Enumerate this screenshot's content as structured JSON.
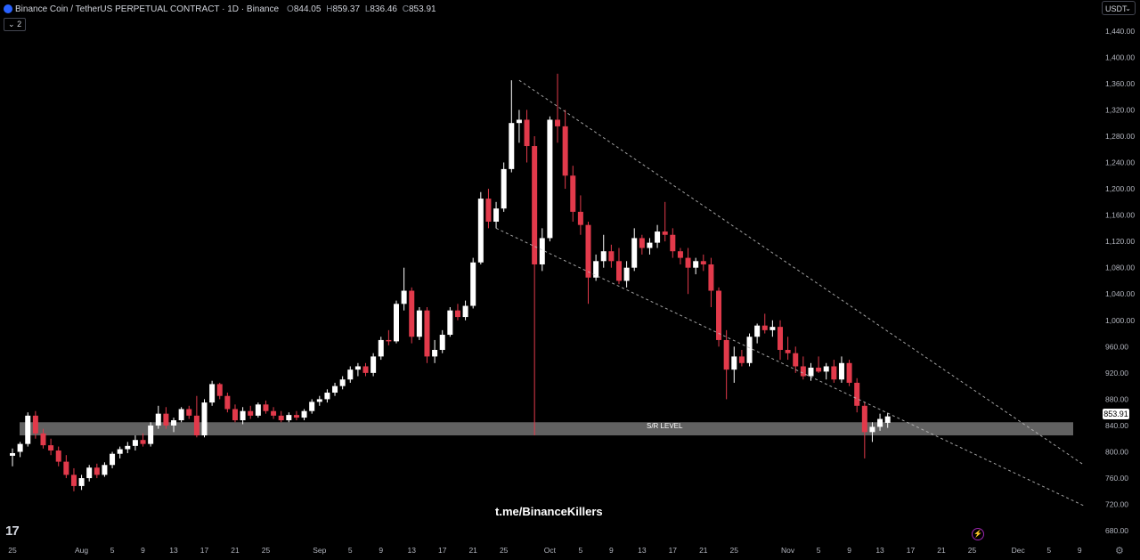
{
  "header": {
    "symbol": "Binance Coin / TetherUS PERPETUAL CONTRACT · 1D · Binance",
    "o_label": "O",
    "o": "844.05",
    "h_label": "H",
    "h": "859.37",
    "l_label": "L",
    "l": "836.46",
    "c_label": "C",
    "c": "853.91"
  },
  "indicator_toggle": "2",
  "currency_select": "USDT",
  "last_price_tag": "853.91",
  "watermark": "t.me/BinanceKillers",
  "sr_label": "S/R LEVEL",
  "tv_logo": "17",
  "colors": {
    "up": "#ffffff",
    "down": "#e23a4b",
    "background": "#000000",
    "sr_zone": "#6b6b6b",
    "trendline": "#bfbfbf"
  },
  "chart_data": {
    "type": "candlestick",
    "title": "Binance Coin / TetherUS PERPETUAL CONTRACT · 1D · Binance",
    "ylim": [
      680,
      1460
    ],
    "yticks": [
      680,
      720,
      760,
      800,
      840,
      880,
      920,
      960,
      1000,
      1040,
      1080,
      1120,
      1160,
      1200,
      1240,
      1280,
      1320,
      1360,
      1400,
      1440
    ],
    "ytick_labels": [
      "680.00",
      "720.00",
      "760.00",
      "800.00",
      "840.00",
      "880.00",
      "920.00",
      "960.00",
      "1,000.00",
      "1,040.00",
      "1,080.00",
      "1,120.00",
      "1,160.00",
      "1,200.00",
      "1,240.00",
      "1,280.00",
      "1,320.00",
      "1,360.00",
      "1,400.00",
      "1,440.00"
    ],
    "xticks": [
      {
        "i": 0,
        "label": "25"
      },
      {
        "i": 9,
        "label": "Aug"
      },
      {
        "i": 13,
        "label": "5"
      },
      {
        "i": 17,
        "label": "9"
      },
      {
        "i": 21,
        "label": "13"
      },
      {
        "i": 25,
        "label": "17"
      },
      {
        "i": 29,
        "label": "21"
      },
      {
        "i": 33,
        "label": "25"
      },
      {
        "i": 40,
        "label": "Sep"
      },
      {
        "i": 44,
        "label": "5"
      },
      {
        "i": 48,
        "label": "9"
      },
      {
        "i": 52,
        "label": "13"
      },
      {
        "i": 56,
        "label": "17"
      },
      {
        "i": 60,
        "label": "21"
      },
      {
        "i": 64,
        "label": "25"
      },
      {
        "i": 70,
        "label": "Oct"
      },
      {
        "i": 74,
        "label": "5"
      },
      {
        "i": 78,
        "label": "9"
      },
      {
        "i": 82,
        "label": "13"
      },
      {
        "i": 86,
        "label": "17"
      },
      {
        "i": 90,
        "label": "21"
      },
      {
        "i": 94,
        "label": "25"
      },
      {
        "i": 101,
        "label": "Nov"
      },
      {
        "i": 105,
        "label": "5"
      },
      {
        "i": 109,
        "label": "9"
      },
      {
        "i": 113,
        "label": "13"
      },
      {
        "i": 117,
        "label": "17"
      },
      {
        "i": 121,
        "label": "21"
      },
      {
        "i": 125,
        "label": "25"
      },
      {
        "i": 131,
        "label": "Dec"
      },
      {
        "i": 135,
        "label": "5"
      },
      {
        "i": 139,
        "label": "9"
      }
    ],
    "candles": [
      {
        "o": 794,
        "h": 805,
        "l": 778,
        "c": 798
      },
      {
        "o": 800,
        "h": 815,
        "l": 792,
        "c": 812
      },
      {
        "o": 812,
        "h": 860,
        "l": 808,
        "c": 855
      },
      {
        "o": 855,
        "h": 862,
        "l": 820,
        "c": 828
      },
      {
        "o": 828,
        "h": 835,
        "l": 805,
        "c": 810
      },
      {
        "o": 810,
        "h": 820,
        "l": 795,
        "c": 802
      },
      {
        "o": 802,
        "h": 808,
        "l": 778,
        "c": 785
      },
      {
        "o": 785,
        "h": 795,
        "l": 760,
        "c": 765
      },
      {
        "o": 765,
        "h": 775,
        "l": 740,
        "c": 748
      },
      {
        "o": 748,
        "h": 765,
        "l": 742,
        "c": 760
      },
      {
        "o": 760,
        "h": 780,
        "l": 755,
        "c": 776
      },
      {
        "o": 776,
        "h": 782,
        "l": 760,
        "c": 765
      },
      {
        "o": 765,
        "h": 784,
        "l": 762,
        "c": 780
      },
      {
        "o": 780,
        "h": 800,
        "l": 775,
        "c": 797
      },
      {
        "o": 797,
        "h": 808,
        "l": 790,
        "c": 804
      },
      {
        "o": 804,
        "h": 815,
        "l": 798,
        "c": 809
      },
      {
        "o": 809,
        "h": 825,
        "l": 802,
        "c": 818
      },
      {
        "o": 818,
        "h": 828,
        "l": 808,
        "c": 812
      },
      {
        "o": 812,
        "h": 845,
        "l": 808,
        "c": 840
      },
      {
        "o": 840,
        "h": 870,
        "l": 835,
        "c": 858
      },
      {
        "o": 858,
        "h": 868,
        "l": 835,
        "c": 840
      },
      {
        "o": 840,
        "h": 852,
        "l": 830,
        "c": 848
      },
      {
        "o": 848,
        "h": 868,
        "l": 845,
        "c": 865
      },
      {
        "o": 865,
        "h": 870,
        "l": 850,
        "c": 855
      },
      {
        "o": 855,
        "h": 885,
        "l": 822,
        "c": 825
      },
      {
        "o": 825,
        "h": 880,
        "l": 822,
        "c": 875
      },
      {
        "o": 875,
        "h": 908,
        "l": 870,
        "c": 903
      },
      {
        "o": 903,
        "h": 905,
        "l": 880,
        "c": 885
      },
      {
        "o": 885,
        "h": 890,
        "l": 860,
        "c": 865
      },
      {
        "o": 865,
        "h": 872,
        "l": 845,
        "c": 848
      },
      {
        "o": 848,
        "h": 868,
        "l": 842,
        "c": 862
      },
      {
        "o": 862,
        "h": 870,
        "l": 850,
        "c": 855
      },
      {
        "o": 855,
        "h": 875,
        "l": 852,
        "c": 872
      },
      {
        "o": 872,
        "h": 878,
        "l": 858,
        "c": 862
      },
      {
        "o": 862,
        "h": 868,
        "l": 850,
        "c": 855
      },
      {
        "o": 855,
        "h": 862,
        "l": 845,
        "c": 848
      },
      {
        "o": 848,
        "h": 860,
        "l": 845,
        "c": 856
      },
      {
        "o": 856,
        "h": 862,
        "l": 848,
        "c": 852
      },
      {
        "o": 852,
        "h": 865,
        "l": 848,
        "c": 862
      },
      {
        "o": 862,
        "h": 880,
        "l": 858,
        "c": 876
      },
      {
        "o": 876,
        "h": 885,
        "l": 870,
        "c": 880
      },
      {
        "o": 880,
        "h": 895,
        "l": 875,
        "c": 890
      },
      {
        "o": 890,
        "h": 905,
        "l": 885,
        "c": 900
      },
      {
        "o": 900,
        "h": 915,
        "l": 895,
        "c": 910
      },
      {
        "o": 910,
        "h": 930,
        "l": 905,
        "c": 925
      },
      {
        "o": 925,
        "h": 935,
        "l": 915,
        "c": 930
      },
      {
        "o": 930,
        "h": 935,
        "l": 915,
        "c": 920
      },
      {
        "o": 920,
        "h": 950,
        "l": 915,
        "c": 945
      },
      {
        "o": 945,
        "h": 975,
        "l": 940,
        "c": 970
      },
      {
        "o": 970,
        "h": 985,
        "l": 962,
        "c": 968
      },
      {
        "o": 968,
        "h": 1030,
        "l": 965,
        "c": 1025
      },
      {
        "o": 1025,
        "h": 1080,
        "l": 1015,
        "c": 1045
      },
      {
        "o": 1045,
        "h": 1050,
        "l": 965,
        "c": 975
      },
      {
        "o": 975,
        "h": 1020,
        "l": 970,
        "c": 1015
      },
      {
        "o": 1015,
        "h": 1020,
        "l": 935,
        "c": 945
      },
      {
        "o": 945,
        "h": 970,
        "l": 935,
        "c": 955
      },
      {
        "o": 955,
        "h": 985,
        "l": 950,
        "c": 978
      },
      {
        "o": 978,
        "h": 1020,
        "l": 975,
        "c": 1015
      },
      {
        "o": 1015,
        "h": 1025,
        "l": 1000,
        "c": 1005
      },
      {
        "o": 1005,
        "h": 1030,
        "l": 1000,
        "c": 1022
      },
      {
        "o": 1022,
        "h": 1095,
        "l": 1018,
        "c": 1088
      },
      {
        "o": 1088,
        "h": 1195,
        "l": 1085,
        "c": 1185
      },
      {
        "o": 1185,
        "h": 1200,
        "l": 1140,
        "c": 1150
      },
      {
        "o": 1150,
        "h": 1180,
        "l": 1140,
        "c": 1170
      },
      {
        "o": 1170,
        "h": 1240,
        "l": 1165,
        "c": 1230
      },
      {
        "o": 1230,
        "h": 1365,
        "l": 1225,
        "c": 1300
      },
      {
        "o": 1300,
        "h": 1320,
        "l": 1270,
        "c": 1305
      },
      {
        "o": 1305,
        "h": 1320,
        "l": 1240,
        "c": 1265
      },
      {
        "o": 1265,
        "h": 1280,
        "l": 825,
        "c": 1085
      },
      {
        "o": 1085,
        "h": 1140,
        "l": 1075,
        "c": 1125
      },
      {
        "o": 1125,
        "h": 1310,
        "l": 1120,
        "c": 1305
      },
      {
        "o": 1305,
        "h": 1375,
        "l": 1270,
        "c": 1295
      },
      {
        "o": 1295,
        "h": 1320,
        "l": 1200,
        "c": 1220
      },
      {
        "o": 1220,
        "h": 1235,
        "l": 1150,
        "c": 1165
      },
      {
        "o": 1165,
        "h": 1190,
        "l": 1130,
        "c": 1145
      },
      {
        "o": 1145,
        "h": 1150,
        "l": 1025,
        "c": 1065
      },
      {
        "o": 1065,
        "h": 1100,
        "l": 1060,
        "c": 1090
      },
      {
        "o": 1090,
        "h": 1130,
        "l": 1080,
        "c": 1105
      },
      {
        "o": 1105,
        "h": 1115,
        "l": 1080,
        "c": 1090
      },
      {
        "o": 1090,
        "h": 1110,
        "l": 1055,
        "c": 1060
      },
      {
        "o": 1060,
        "h": 1090,
        "l": 1050,
        "c": 1080
      },
      {
        "o": 1080,
        "h": 1140,
        "l": 1075,
        "c": 1125
      },
      {
        "o": 1125,
        "h": 1130,
        "l": 1100,
        "c": 1110
      },
      {
        "o": 1110,
        "h": 1125,
        "l": 1100,
        "c": 1118
      },
      {
        "o": 1118,
        "h": 1145,
        "l": 1110,
        "c": 1135
      },
      {
        "o": 1135,
        "h": 1180,
        "l": 1120,
        "c": 1130
      },
      {
        "o": 1130,
        "h": 1140,
        "l": 1095,
        "c": 1105
      },
      {
        "o": 1105,
        "h": 1110,
        "l": 1085,
        "c": 1095
      },
      {
        "o": 1095,
        "h": 1110,
        "l": 1040,
        "c": 1080
      },
      {
        "o": 1080,
        "h": 1095,
        "l": 1070,
        "c": 1090
      },
      {
        "o": 1090,
        "h": 1100,
        "l": 1075,
        "c": 1085
      },
      {
        "o": 1085,
        "h": 1095,
        "l": 1020,
        "c": 1045
      },
      {
        "o": 1045,
        "h": 1050,
        "l": 960,
        "c": 970
      },
      {
        "o": 970,
        "h": 985,
        "l": 880,
        "c": 925
      },
      {
        "o": 925,
        "h": 960,
        "l": 905,
        "c": 945
      },
      {
        "o": 945,
        "h": 955,
        "l": 930,
        "c": 935
      },
      {
        "o": 935,
        "h": 980,
        "l": 930,
        "c": 975
      },
      {
        "o": 975,
        "h": 995,
        "l": 965,
        "c": 992
      },
      {
        "o": 992,
        "h": 1010,
        "l": 980,
        "c": 985
      },
      {
        "o": 985,
        "h": 1000,
        "l": 975,
        "c": 990
      },
      {
        "o": 990,
        "h": 1000,
        "l": 940,
        "c": 955
      },
      {
        "o": 955,
        "h": 975,
        "l": 940,
        "c": 950
      },
      {
        "o": 950,
        "h": 960,
        "l": 920,
        "c": 930
      },
      {
        "o": 930,
        "h": 945,
        "l": 910,
        "c": 915
      },
      {
        "o": 915,
        "h": 935,
        "l": 908,
        "c": 928
      },
      {
        "o": 928,
        "h": 945,
        "l": 920,
        "c": 922
      },
      {
        "o": 922,
        "h": 935,
        "l": 910,
        "c": 930
      },
      {
        "o": 930,
        "h": 940,
        "l": 905,
        "c": 910
      },
      {
        "o": 910,
        "h": 945,
        "l": 905,
        "c": 935
      },
      {
        "o": 935,
        "h": 940,
        "l": 900,
        "c": 905
      },
      {
        "o": 905,
        "h": 912,
        "l": 860,
        "c": 870
      },
      {
        "o": 870,
        "h": 875,
        "l": 790,
        "c": 830
      },
      {
        "o": 830,
        "h": 845,
        "l": 815,
        "c": 838
      },
      {
        "o": 838,
        "h": 858,
        "l": 832,
        "c": 850
      },
      {
        "o": 844.05,
        "h": 859.37,
        "l": 836.46,
        "c": 853.91
      }
    ],
    "sr_zone": {
      "label": "S/R LEVEL",
      "low": 825,
      "high": 845
    },
    "trendlines": [
      {
        "x1": 66,
        "y1": 1365,
        "x2": 150,
        "y2": 780
      },
      {
        "x1": 63,
        "y1": 1140,
        "x2": 150,
        "y2": 718
      }
    ],
    "last_price": 853.91
  }
}
